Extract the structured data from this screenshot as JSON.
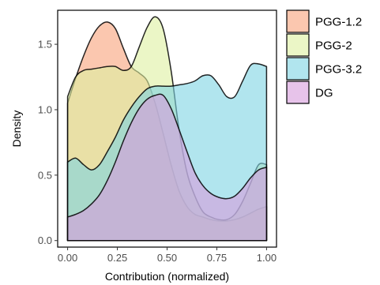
{
  "chart_data": {
    "type": "area",
    "title": "",
    "xlabel": "Contribution (normalized)",
    "ylabel": "Density",
    "xlim": [
      -0.05,
      1.05
    ],
    "ylim": [
      -0.05,
      1.76
    ],
    "x_ticks": [
      0,
      0.25,
      0.5,
      0.75,
      1
    ],
    "x_tick_labels": [
      "0.00",
      "0.25",
      "0.50",
      "0.75",
      "1.00"
    ],
    "y_ticks": [
      0,
      0.5,
      1,
      1.5
    ],
    "y_tick_labels": [
      "0.0",
      "0.5",
      "1.0",
      "1.5"
    ],
    "grid": false,
    "legend_position": "right",
    "series": [
      {
        "name": "PGG-1.2",
        "color": "#f8a27a",
        "x": [
          0,
          0.04,
          0.08,
          0.12,
          0.16,
          0.2,
          0.24,
          0.28,
          0.32,
          0.36,
          0.4,
          0.44,
          0.48,
          0.52,
          0.56,
          0.6,
          0.64,
          0.68,
          0.72,
          0.76,
          0.8,
          0.84,
          0.88,
          0.92,
          0.96,
          1
        ],
        "values": [
          1.05,
          1.24,
          1.41,
          1.55,
          1.64,
          1.67,
          1.62,
          1.47,
          1.33,
          1.28,
          1.22,
          1.05,
          0.82,
          0.58,
          0.38,
          0.26,
          0.2,
          0.18,
          0.16,
          0.15,
          0.15,
          0.16,
          0.18,
          0.21,
          0.24,
          0.26
        ]
      },
      {
        "name": "PGG-2",
        "color": "#ddf0a0",
        "x": [
          0,
          0.04,
          0.08,
          0.12,
          0.16,
          0.2,
          0.24,
          0.28,
          0.32,
          0.36,
          0.4,
          0.44,
          0.48,
          0.52,
          0.56,
          0.6,
          0.64,
          0.68,
          0.72,
          0.76,
          0.8,
          0.84,
          0.88,
          0.92,
          0.96,
          1
        ],
        "values": [
          1.1,
          1.25,
          1.3,
          1.31,
          1.32,
          1.33,
          1.33,
          1.3,
          1.33,
          1.48,
          1.63,
          1.71,
          1.62,
          1.3,
          0.85,
          0.52,
          0.34,
          0.22,
          0.18,
          0.16,
          0.16,
          0.2,
          0.3,
          0.44,
          0.58,
          0.58
        ]
      },
      {
        "name": "PGG-3.2",
        "color": "#7dd3e3",
        "x": [
          0,
          0.04,
          0.08,
          0.12,
          0.16,
          0.2,
          0.24,
          0.28,
          0.32,
          0.36,
          0.4,
          0.44,
          0.48,
          0.52,
          0.56,
          0.6,
          0.64,
          0.68,
          0.72,
          0.76,
          0.8,
          0.84,
          0.88,
          0.92,
          0.96,
          1
        ],
        "values": [
          0.6,
          0.63,
          0.58,
          0.54,
          0.58,
          0.68,
          0.79,
          0.92,
          1.02,
          1.1,
          1.16,
          1.18,
          1.18,
          1.18,
          1.19,
          1.2,
          1.22,
          1.26,
          1.26,
          1.19,
          1.1,
          1.1,
          1.22,
          1.34,
          1.35,
          1.33
        ]
      },
      {
        "name": "DG",
        "color": "#d79bdc",
        "x": [
          0,
          0.04,
          0.08,
          0.12,
          0.16,
          0.2,
          0.24,
          0.28,
          0.32,
          0.36,
          0.4,
          0.44,
          0.48,
          0.52,
          0.56,
          0.6,
          0.64,
          0.68,
          0.72,
          0.76,
          0.8,
          0.84,
          0.88,
          0.92,
          0.96,
          1
        ],
        "values": [
          0.18,
          0.2,
          0.23,
          0.28,
          0.35,
          0.46,
          0.6,
          0.76,
          0.9,
          1.01,
          1.08,
          1.11,
          1.11,
          1.01,
          0.85,
          0.68,
          0.52,
          0.42,
          0.36,
          0.33,
          0.32,
          0.34,
          0.4,
          0.48,
          0.54,
          0.56
        ]
      }
    ]
  }
}
